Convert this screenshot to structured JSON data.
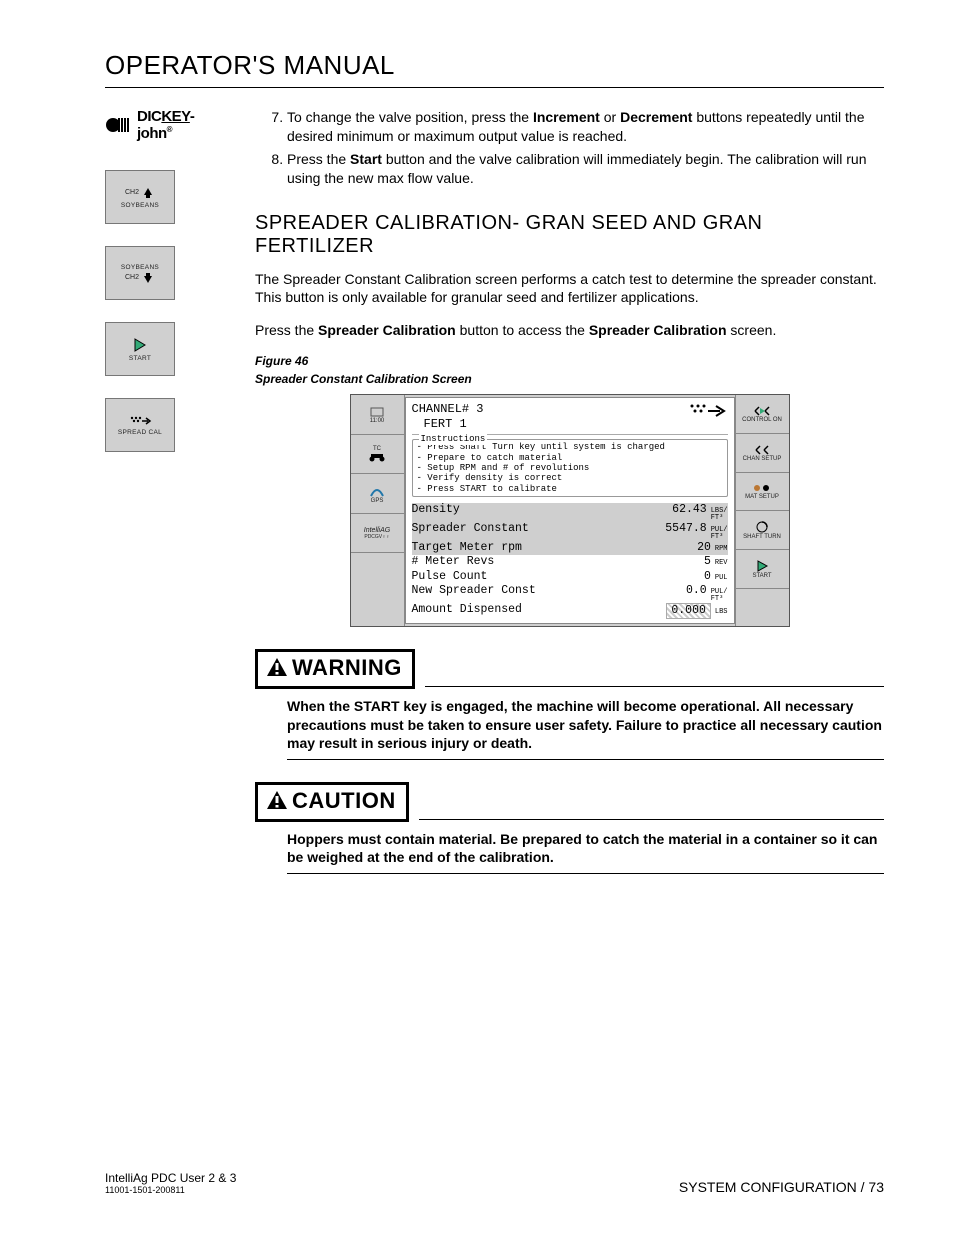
{
  "header": {
    "title": "OPERATOR'S MANUAL"
  },
  "logo": {
    "brand_pre": "DIC",
    "brand_mid": "KEY",
    "brand_post": "-john"
  },
  "sidebar_buttons": [
    {
      "name": "ch2-soybeans-up",
      "top": "CH2",
      "label": "SOYBEANS"
    },
    {
      "name": "soybeans-ch2-down",
      "top": "SOYBEANS",
      "label": "CH2"
    },
    {
      "name": "start",
      "label": "START"
    },
    {
      "name": "spread-cal",
      "label": "SPREAD CAL"
    }
  ],
  "steps": {
    "start": 7,
    "items": [
      {
        "pre": "To change the valve position, press the ",
        "b1": "Increment",
        "mid1": " or ",
        "b2": "Decrement",
        "post": " buttons repeatedly until the desired minimum or maximum output value is reached."
      },
      {
        "pre": "Press the ",
        "b1": "Start",
        "post": " button and the valve calibration will immediately begin. The calibration will run using the new max flow value."
      }
    ]
  },
  "section": {
    "title": "SPREADER CALIBRATION- GRAN SEED AND GRAN FERTILIZER"
  },
  "paras": {
    "p1": "The Spreader Constant Calibration screen performs a catch test to determine the spreader constant. This button is only available for granular seed and fertilizer applications.",
    "p2_pre": "Press the ",
    "p2_b1": "Spreader Calibration",
    "p2_mid": " button to access the ",
    "p2_b2": "Spreader Calibration",
    "p2_post": " screen."
  },
  "figure": {
    "label": "Figure 46",
    "caption": "Spreader Constant Calibration Screen"
  },
  "screen": {
    "time": "11:00",
    "channel": "CHANNEL# 3",
    "subtitle": "FERT 1",
    "instructions_label": "Instructions",
    "instructions": [
      "Press Shaft Turn key until system is charged",
      "Prepare to catch material",
      "Setup RPM and # of revolutions",
      "Verify density is correct",
      "Press START to calibrate"
    ],
    "rows": [
      {
        "label": "Density",
        "value": "62.43",
        "unit": "LBS/\nFT³",
        "hl": true
      },
      {
        "label": "Spreader Constant",
        "value": "5547.8",
        "unit": "PUL/\nFT³",
        "hl": true
      },
      {
        "label": "Target Meter rpm",
        "value": "20",
        "unit": "RPM",
        "hl": true
      },
      {
        "label": "# Meter Revs",
        "value": "5",
        "unit": "REV",
        "hl": false
      },
      {
        "label": "",
        "value": "",
        "unit": "",
        "hl": false
      },
      {
        "label": "Pulse Count",
        "value": "0",
        "unit": "PUL",
        "hl": false
      },
      {
        "label": "New Spreader Const",
        "value": "0.0",
        "unit": "PUL/\nFT³",
        "hl": false
      },
      {
        "label": "Amount Dispensed",
        "value": "0.000",
        "unit": "LBS",
        "hl": false,
        "boxed": true
      }
    ],
    "left_btns": [
      {
        "time": "11:00"
      },
      {
        "label": "TC"
      },
      {
        "label": "GPS"
      },
      {
        "label": "IntelliAG"
      },
      {
        "label": ""
      }
    ],
    "right_btns": [
      {
        "label": "CONTROL ON"
      },
      {
        "label": "CHAN SETUP"
      },
      {
        "label": "MAT SETUP"
      },
      {
        "label": "SHAFT TURN"
      },
      {
        "label": "START"
      }
    ]
  },
  "warning": {
    "title": "WARNING",
    "text": "When the START key is engaged, the machine will become operational. All necessary precautions must be taken to ensure user safety. Failure to practice all necessary caution may result in serious injury or death."
  },
  "caution": {
    "title": "CAUTION",
    "text": "Hoppers must contain material. Be prepared to catch the material in a container so it can be weighed at the end of the calibration."
  },
  "footer": {
    "product": "IntelliAg PDC User 2 & 3",
    "docnum": "11001-1501-200811",
    "section": "SYSTEM CONFIGURATION",
    "page": "73"
  }
}
